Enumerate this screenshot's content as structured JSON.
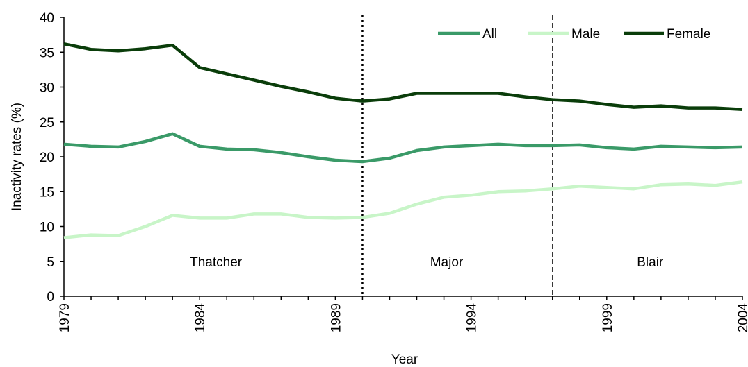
{
  "chart_data": {
    "type": "line",
    "xlabel": "Year",
    "ylabel": "Inactivity rates (%)",
    "xlim": [
      1979,
      2004
    ],
    "ylim": [
      0,
      40
    ],
    "y_ticks": [
      0,
      5,
      10,
      15,
      20,
      25,
      30,
      35,
      40
    ],
    "x_ticks": [
      1979,
      1984,
      1989,
      1994,
      1999,
      2004
    ],
    "grid": false,
    "legend_position": "top-right",
    "x": [
      1979,
      1980,
      1981,
      1982,
      1983,
      1984,
      1985,
      1986,
      1987,
      1988,
      1989,
      1990,
      1991,
      1992,
      1993,
      1994,
      1995,
      1996,
      1997,
      1998,
      1999,
      2000,
      2001,
      2002,
      2003,
      2004
    ],
    "series": [
      {
        "name": "All",
        "color": "#3a9a68",
        "values": [
          21.8,
          21.5,
          21.4,
          22.2,
          23.3,
          21.5,
          21.1,
          21.0,
          20.6,
          20.0,
          19.5,
          19.3,
          19.8,
          20.9,
          21.4,
          21.6,
          21.8,
          21.6,
          21.6,
          21.7,
          21.3,
          21.1,
          21.5,
          21.4,
          21.3,
          21.4
        ]
      },
      {
        "name": "Male",
        "color": "#c8f5c8",
        "values": [
          8.4,
          8.8,
          8.7,
          10.0,
          11.6,
          11.2,
          11.2,
          11.8,
          11.8,
          11.3,
          11.2,
          11.3,
          11.9,
          13.2,
          14.2,
          14.5,
          15.0,
          15.1,
          15.4,
          15.8,
          15.6,
          15.4,
          16.0,
          16.1,
          15.9,
          16.4
        ]
      },
      {
        "name": "Female",
        "color": "#0a3d0a",
        "values": [
          36.2,
          35.4,
          35.2,
          35.5,
          36.0,
          32.8,
          31.9,
          31.0,
          30.1,
          29.3,
          28.4,
          28.0,
          28.3,
          29.1,
          29.1,
          29.1,
          29.1,
          28.6,
          28.2,
          28.0,
          27.5,
          27.1,
          27.3,
          27.0,
          27.0,
          26.8
        ]
      }
    ],
    "annotations": [
      {
        "text": "Thatcher",
        "x": 1984.6,
        "y": 5
      },
      {
        "text": "Major",
        "x": 1993.1,
        "y": 5
      },
      {
        "text": "Blair",
        "x": 2000.6,
        "y": 5
      }
    ],
    "period_dividers": [
      {
        "x": 1990,
        "style": "dotted"
      },
      {
        "x": 1997,
        "style": "dashed"
      }
    ]
  }
}
